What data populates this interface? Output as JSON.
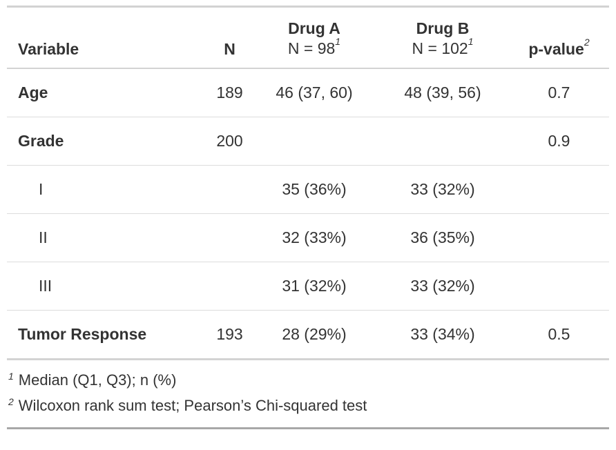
{
  "colors": {
    "text": "#333333",
    "border_light": "#D3D3D3",
    "border_row": "#DCDCDC",
    "border_bottom": "#A8A8A8"
  },
  "table": {
    "header": {
      "variable": "Variable",
      "n": "N",
      "group1_name": "Drug A",
      "group1_n": "N = 98",
      "group1_footnote_marker": "1",
      "group2_name": "Drug B",
      "group2_n": "N = 102",
      "group2_footnote_marker": "1",
      "p_value": "p-value",
      "p_value_footnote_marker": "2"
    },
    "rows": [
      {
        "label": "Age",
        "n": "189",
        "drug_a": "46 (37, 60)",
        "drug_b": "48 (39, 56)",
        "p": "0.7"
      },
      {
        "label": "Grade",
        "n": "200",
        "drug_a": "",
        "drug_b": "",
        "p": "0.9"
      },
      {
        "label": "I",
        "n": "",
        "drug_a": "35 (36%)",
        "drug_b": "33 (32%)",
        "p": ""
      },
      {
        "label": "II",
        "n": "",
        "drug_a": "32 (33%)",
        "drug_b": "36 (35%)",
        "p": ""
      },
      {
        "label": "III",
        "n": "",
        "drug_a": "31 (32%)",
        "drug_b": "33 (32%)",
        "p": ""
      },
      {
        "label": "Tumor Response",
        "n": "193",
        "drug_a": "28 (29%)",
        "drug_b": "33 (34%)",
        "p": "0.5"
      }
    ],
    "footnotes": [
      {
        "marker": "1",
        "text": "Median (Q1, Q3); n (%)"
      },
      {
        "marker": "2",
        "text": "Wilcoxon rank sum test; Pearson’s Chi-squared test"
      }
    ]
  },
  "chart_data": {
    "type": "table",
    "title": "",
    "columns": [
      "Variable",
      "N",
      "Drug A, N = 98",
      "Drug B, N = 102",
      "p-value"
    ],
    "rows": [
      [
        "Age",
        "189",
        "46 (37, 60)",
        "48 (39, 56)",
        "0.7"
      ],
      [
        "Grade",
        "200",
        "",
        "",
        "0.9"
      ],
      [
        "I",
        "",
        "35 (36%)",
        "33 (32%)",
        ""
      ],
      [
        "II",
        "",
        "32 (33%)",
        "36 (35%)",
        ""
      ],
      [
        "III",
        "",
        "31 (32%)",
        "33 (32%)",
        ""
      ],
      [
        "Tumor Response",
        "193",
        "28 (29%)",
        "33 (34%)",
        "0.5"
      ]
    ],
    "footnotes": [
      "1 Median (Q1, Q3); n (%)",
      "2 Wilcoxon rank sum test; Pearson’s Chi-squared test"
    ]
  }
}
